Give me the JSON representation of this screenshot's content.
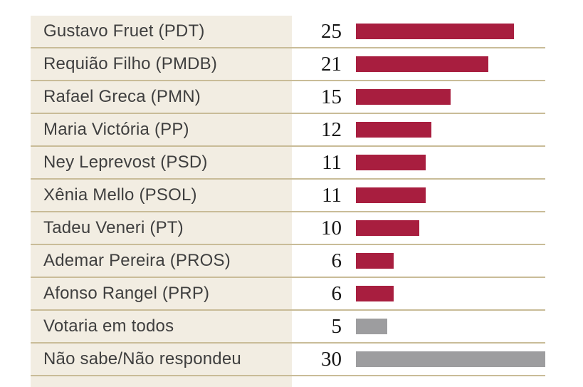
{
  "chart_data": {
    "type": "bar",
    "orientation": "horizontal",
    "title": "",
    "xlabel": "",
    "ylabel": "",
    "xlim": [
      0,
      30
    ],
    "grid": false,
    "legend": false,
    "categories": [
      "Gustavo Fruet (PDT)",
      "Requião Filho (PMDB)",
      "Rafael Greca (PMN)",
      "Maria Victória (PP)",
      "Ney Leprevost (PSD)",
      "Xênia Mello (PSOL)",
      "Tadeu Veneri (PT)",
      "Ademar Pereira (PROS)",
      "Afonso Rangel (PRP)",
      "Votaria em todos",
      "Não sabe/Não respondeu"
    ],
    "values": [
      25,
      21,
      15,
      12,
      11,
      11,
      10,
      6,
      6,
      5,
      30
    ],
    "bar_colors": [
      "#a81e3f",
      "#a81e3f",
      "#a81e3f",
      "#a81e3f",
      "#a81e3f",
      "#a81e3f",
      "#a81e3f",
      "#a81e3f",
      "#a81e3f",
      "#9d9d9f",
      "#9d9d9f"
    ]
  },
  "colors": {
    "bar_red": "#a81e3f",
    "bar_gray": "#9d9d9f",
    "label_panel_cream": "#f2ede2",
    "separator_tan": "#c9bc98",
    "label_text": "#3f3f3f",
    "value_text": "#141414"
  }
}
